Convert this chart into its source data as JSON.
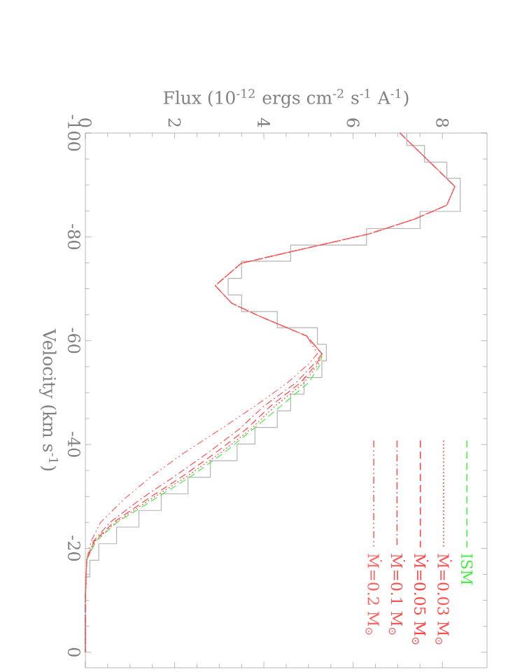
{
  "chart_data": {
    "type": "line",
    "orientation": "horizontal",
    "xlabel": "Flux (10$^{-12}$ ergs cm$^{-2}$ s$^{-1}$ A$^{-1}$)",
    "ylabel": "Velocity (km s$^{-1}$)",
    "xlim": [
      0,
      9
    ],
    "ylim": [
      3,
      -100
    ],
    "xticks": [
      0,
      2,
      4,
      6,
      8
    ],
    "yticks": [
      -100,
      -80,
      -60,
      -40,
      -20,
      0
    ],
    "legend": "bottom right",
    "series": [
      {
        "type": "step",
        "color": "#b4b4b4",
        "x": [
          -100,
          -97.6,
          -94.4,
          -91.3,
          -88.1,
          -84.9,
          -81.6,
          -78.4,
          -75.3,
          -72.0,
          -68.8,
          -65.6,
          -62.5,
          -59.3,
          -56.1,
          -52.9,
          -49.7,
          -46.5,
          -43.3,
          -40.1,
          -36.9,
          -33.7,
          -30.5,
          -27.3,
          -24.1,
          -20.9,
          -17.7,
          -14.5,
          -11.3,
          -8.1,
          -4.9,
          -1.7
        ],
        "values": [
          7.2,
          7.6,
          8.1,
          8.4,
          8.4,
          7.5,
          6.3,
          4.6,
          3.5,
          3.2,
          3.5,
          4.3,
          5.2,
          5.4,
          5.3,
          4.9,
          4.6,
          4.3,
          3.8,
          3.4,
          2.8,
          2.3,
          1.7,
          1.2,
          0.7,
          0.3,
          0.1,
          0.0,
          0.0,
          0.0,
          0.0,
          0.0
        ]
      },
      {
        "name": "ISM",
        "color": "#44ee44",
        "line_style": "dashed",
        "x": [
          -57.5,
          -55.5,
          -51.9,
          -47.4,
          -42.9,
          -38.5,
          -34.0,
          -29.5,
          -25.0,
          -21.4,
          -17.8
        ],
        "values": [
          5.3,
          5.27,
          5.0,
          4.38,
          3.75,
          3.12,
          2.39,
          1.55,
          0.71,
          0.24,
          0.03
        ]
      },
      {
        "name": "Ṁ=0.03 M$_{⊙}$",
        "color": "#ff5050",
        "line_style": "dotted",
        "x": [
          -100,
          -89.7,
          -86.1,
          -83.4,
          -80.6,
          -77.1,
          -74.9,
          -70.6,
          -67.2,
          -64.5,
          -60.9,
          -57.5,
          -55.5,
          -51.9,
          -47.4,
          -42.9,
          -38.5,
          -34.0,
          -29.5,
          -25.0,
          -21.4,
          -17.8,
          -10,
          0
        ],
        "values": [
          7.05,
          8.28,
          8.1,
          7.37,
          6.37,
          4.59,
          3.49,
          2.91,
          3.28,
          3.96,
          4.96,
          5.3,
          5.22,
          4.9,
          4.25,
          3.7,
          3.04,
          2.3,
          1.47,
          0.68,
          0.22,
          0.03,
          0,
          0
        ]
      },
      {
        "name": "Ṁ=0.05 M$_{⊙}$",
        "color": "#ff4444",
        "line_style": "dashed",
        "x": [
          -100,
          -89.7,
          -86.1,
          -83.4,
          -80.6,
          -77.1,
          -74.9,
          -70.6,
          -67.2,
          -64.5,
          -60.9,
          -57.5,
          -55.5,
          -51.9,
          -47.4,
          -42.9,
          -38.5,
          -34.0,
          -29.5,
          -25.0,
          -21.4,
          -17.8,
          -10,
          0
        ],
        "values": [
          7.05,
          8.28,
          8.1,
          7.37,
          6.37,
          4.59,
          3.49,
          2.91,
          3.28,
          3.96,
          4.96,
          5.3,
          5.18,
          4.82,
          4.15,
          3.6,
          2.93,
          2.2,
          1.39,
          0.63,
          0.2,
          0.03,
          0,
          0
        ]
      },
      {
        "name": "Ṁ=0.1 M$_{⊙}$",
        "color": "#f05858",
        "line_style": "dashdot",
        "x": [
          -100,
          -89.7,
          -86.1,
          -83.4,
          -80.6,
          -77.1,
          -74.9,
          -70.6,
          -67.2,
          -64.5,
          -60.9,
          -57.5,
          -55.5,
          -51.9,
          -47.4,
          -42.9,
          -38.5,
          -34.0,
          -29.5,
          -25.0,
          -21.4,
          -17.8,
          -10,
          0
        ],
        "values": [
          7.05,
          8.28,
          8.1,
          7.37,
          6.37,
          4.59,
          3.49,
          2.91,
          3.28,
          3.96,
          4.96,
          5.3,
          5.12,
          4.72,
          4.0,
          3.44,
          2.76,
          2.02,
          1.24,
          0.55,
          0.18,
          0.03,
          0,
          0
        ]
      },
      {
        "name": "Ṁ=0.2 M$_{⊙}$",
        "color": "#ff6464",
        "line_style": "dashdotdot",
        "x": [
          -100,
          -89.7,
          -86.1,
          -83.4,
          -80.6,
          -77.1,
          -74.9,
          -70.6,
          -67.2,
          -64.5,
          -60.9,
          -57.5,
          -55.5,
          -51.9,
          -47.4,
          -42.9,
          -38.5,
          -34.0,
          -29.5,
          -25.0,
          -21.4,
          -17.8,
          -10,
          0
        ],
        "values": [
          7.05,
          8.28,
          8.1,
          7.37,
          6.37,
          4.59,
          3.49,
          2.91,
          3.28,
          3.96,
          4.96,
          5.2,
          5.0,
          4.53,
          3.8,
          3.02,
          2.23,
          1.5,
          0.87,
          0.34,
          0.13,
          0.03,
          0,
          0
        ]
      }
    ]
  }
}
